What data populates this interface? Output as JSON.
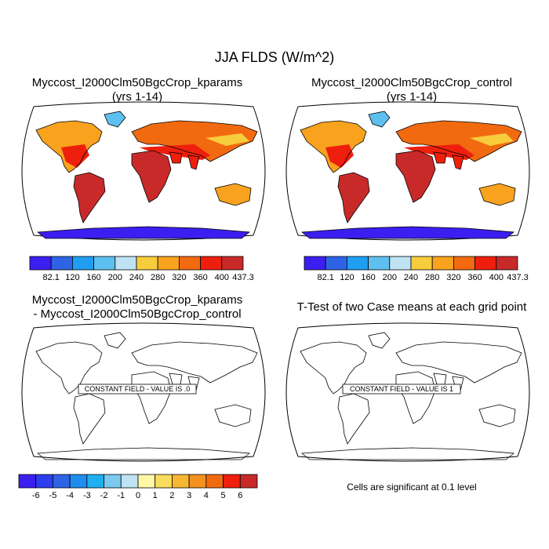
{
  "title": "JJA FLDS (W/m^2)",
  "panels": [
    {
      "title_line1": "Myccost_I2000Clm50BgcCrop_kparams",
      "title_line2": "(yrs 1-14)"
    },
    {
      "title_line1": "Myccost_I2000Clm50BgcCrop_control",
      "title_line2": "(yrs 1-14)"
    },
    {
      "title_line1": "Myccost_I2000Clm50BgcCrop_kparams",
      "title_line2": "- Myccost_I2000Clm50BgcCrop_control",
      "constant_label": "CONSTANT FIELD - VALUE IS .0"
    },
    {
      "title_line1": "T-Test of two Case means at each grid point",
      "title_line2": "",
      "constant_label": "CONSTANT FIELD - VALUE IS 1"
    }
  ],
  "colorbar_abs": {
    "labels": [
      "82.1",
      "120",
      "160",
      "200",
      "240",
      "280",
      "320",
      "360",
      "400",
      "437.3"
    ],
    "colors": [
      "#3b1ff0",
      "#2f63e6",
      "#1f9ef2",
      "#5ec0ef",
      "#bfe3f3",
      "#f7cc3d",
      "#f8a21e",
      "#f26a10",
      "#ee1f0d",
      "#c82a2a"
    ]
  },
  "colorbar_diff": {
    "labels": [
      "-6",
      "-5",
      "-4",
      "-3",
      "-2",
      "-1",
      "0",
      "1",
      "2",
      "3",
      "4",
      "5",
      "6"
    ],
    "colors": [
      "#3b1ff0",
      "#2c3ef0",
      "#2f63e6",
      "#1f8cf0",
      "#1fb0f2",
      "#7cc9ef",
      "#bfe3f3",
      "#fff7a6",
      "#f9dc5c",
      "#f7b733",
      "#f59120",
      "#f26a10",
      "#ee1f0d",
      "#c82a2a"
    ]
  },
  "significance_note": "Cells are significant at 0.1 level"
}
